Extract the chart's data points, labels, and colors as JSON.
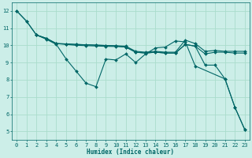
{
  "xlabel": "Humidex (Indice chaleur)",
  "background_color": "#cceee8",
  "grid_color": "#aaddcc",
  "line_color": "#006666",
  "xlim": [
    -0.5,
    23.5
  ],
  "ylim": [
    4.5,
    12.5
  ],
  "xticks": [
    0,
    1,
    2,
    3,
    4,
    5,
    6,
    7,
    8,
    9,
    10,
    11,
    12,
    13,
    14,
    15,
    16,
    17,
    18,
    19,
    20,
    21,
    22,
    23
  ],
  "yticks": [
    5,
    6,
    7,
    8,
    9,
    10,
    11,
    12
  ],
  "curves": [
    {
      "x": [
        0,
        1,
        2,
        3,
        4,
        5,
        6,
        7,
        8,
        9,
        10,
        11,
        12,
        13,
        14,
        15,
        16,
        17,
        18,
        21,
        22,
        23
      ],
      "y": [
        12.0,
        11.4,
        10.6,
        10.35,
        10.05,
        9.2,
        8.5,
        7.8,
        7.6,
        9.2,
        9.15,
        9.5,
        9.0,
        9.5,
        9.85,
        9.9,
        10.25,
        10.2,
        8.8,
        8.05,
        6.4,
        5.1
      ]
    },
    {
      "x": [
        2,
        3,
        4,
        5,
        6,
        7,
        8,
        9,
        10,
        11,
        12,
        13,
        14,
        15,
        16,
        17,
        18,
        19,
        20,
        21,
        22,
        23
      ],
      "y": [
        10.6,
        10.4,
        10.1,
        10.05,
        10.0,
        9.98,
        9.96,
        9.94,
        9.93,
        9.9,
        9.6,
        9.55,
        9.6,
        9.55,
        9.55,
        10.05,
        9.95,
        9.5,
        9.6,
        9.6,
        9.55,
        9.55
      ]
    },
    {
      "x": [
        2,
        3,
        4,
        5,
        6,
        7,
        8,
        9,
        10,
        11,
        12,
        13,
        14,
        15,
        16,
        17,
        18,
        19,
        20,
        21,
        22,
        23
      ],
      "y": [
        10.6,
        10.4,
        10.1,
        10.08,
        10.05,
        10.03,
        10.01,
        9.99,
        9.97,
        9.95,
        9.65,
        9.6,
        9.65,
        9.6,
        9.6,
        10.3,
        10.1,
        9.65,
        9.7,
        9.65,
        9.65,
        9.65
      ]
    },
    {
      "x": [
        0,
        1,
        2,
        3,
        4,
        5,
        6,
        7,
        8,
        9,
        10,
        11,
        12,
        13,
        14,
        15,
        16,
        17,
        18,
        19,
        20,
        21,
        22,
        23
      ],
      "y": [
        12.0,
        11.4,
        10.6,
        10.4,
        10.1,
        10.08,
        10.05,
        10.03,
        10.01,
        9.99,
        9.97,
        9.9,
        9.6,
        9.55,
        9.6,
        9.55,
        9.55,
        10.05,
        9.95,
        8.85,
        8.85,
        8.05,
        6.4,
        5.1
      ]
    }
  ]
}
